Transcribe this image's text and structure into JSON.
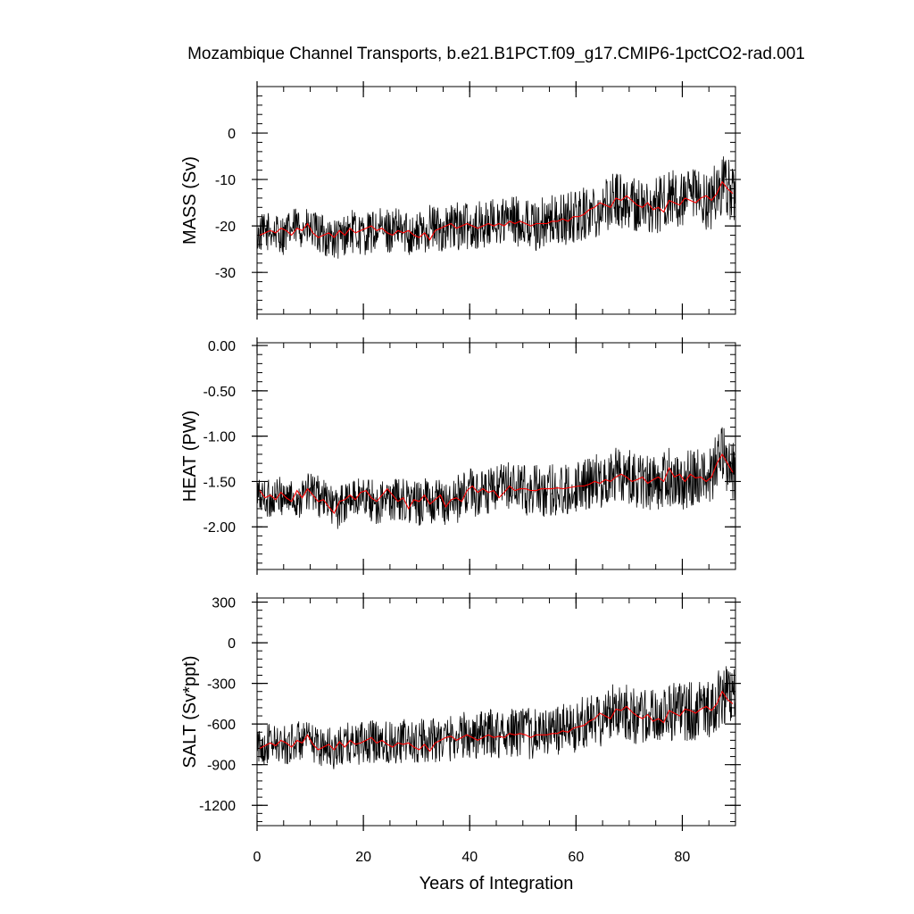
{
  "title": "Mozambique Channel Transports, b.e21.B1PCT.f09_g17.CMIP6-1pctCO2-rad.001",
  "xlabel": "Years of Integration",
  "colors": {
    "monthly": "#000000",
    "annual": "#ff0000",
    "frame": "#000000"
  },
  "chart_data": [
    {
      "type": "line",
      "ylabel": "MASS (Sv)",
      "xlim": [
        0,
        90
      ],
      "ylim": [
        -39,
        10
      ],
      "xticks": [
        0,
        20,
        40,
        60,
        80
      ],
      "yticks": [
        0,
        -10,
        -20,
        -30
      ],
      "ytick_labels": [
        "0",
        "-10",
        "-20",
        "-30"
      ],
      "series": [
        {
          "name": "",
          "style": "monthly",
          "x": [
            0,
            2.5,
            5,
            7.5,
            10,
            12.5,
            15,
            17.5,
            20,
            22.5,
            25,
            27.5,
            30,
            32.5,
            35,
            37.5,
            40,
            42.5,
            45,
            47.5,
            50,
            52.5,
            55,
            57.5,
            60,
            62.5,
            65,
            67.5,
            70,
            72.5,
            75,
            77.5,
            80,
            82.5,
            85,
            87.5,
            90
          ],
          "y": [
            -22,
            -21,
            -22,
            -20,
            -21,
            -22,
            -23,
            -21,
            -22,
            -21,
            -21,
            -21,
            -22,
            -20,
            -21,
            -20,
            -20,
            -20,
            -19,
            -19,
            -19,
            -20,
            -19,
            -19,
            -18,
            -17,
            -16,
            -14,
            -15,
            -16,
            -16,
            -14,
            -15,
            -14,
            -15,
            -11,
            -13
          ]
        },
        {
          "name": "",
          "style": "annual",
          "x": [
            0.5,
            1.5,
            2.5,
            3.5,
            4.5,
            5.5,
            6.5,
            7.5,
            8.5,
            9.5,
            10.5,
            11.5,
            12.5,
            13.5,
            14.5,
            15.5,
            16.5,
            17.5,
            18.5,
            19.5,
            20.5,
            21.5,
            22.5,
            23.5,
            24.5,
            25.5,
            26.5,
            27.5,
            28.5,
            29.5,
            30.5,
            31.5,
            32.5,
            33.5,
            34.5,
            35.5,
            36.5,
            37.5,
            38.5,
            39.5,
            40.5,
            41.5,
            42.5,
            43.5,
            44.5,
            45.5,
            46.5,
            47.5,
            48.5,
            49.5,
            50.5,
            51.5,
            52.5,
            53.5,
            54.5,
            55.5,
            56.5,
            57.5,
            58.5,
            59.5,
            60.5,
            61.5,
            62.5,
            63.5,
            64.5,
            65.5,
            66.5,
            67.5,
            68.5,
            69.5,
            70.5,
            71.5,
            72.5,
            73.5,
            74.5,
            75.5,
            76.5,
            77.5,
            78.5,
            79.5,
            80.5,
            81.5,
            82.5,
            83.5,
            84.5,
            85.5,
            86.5,
            87.5,
            88.5,
            89.5
          ],
          "y": [
            -22,
            -21.5,
            -21,
            -21.5,
            -20.5,
            -21,
            -22,
            -20.5,
            -21,
            -19.5,
            -21.5,
            -22.5,
            -22,
            -21.5,
            -22.5,
            -21,
            -22,
            -20.5,
            -21.5,
            -21,
            -20.5,
            -20,
            -21,
            -20.5,
            -21.5,
            -22,
            -21,
            -21.5,
            -21,
            -22,
            -22.5,
            -21.5,
            -23,
            -21,
            -20.5,
            -20,
            -19.5,
            -20.5,
            -20,
            -19.5,
            -20,
            -20.5,
            -20,
            -19.5,
            -20,
            -19.5,
            -20,
            -19,
            -19.5,
            -19,
            -19.5,
            -20,
            -19.5,
            -19.5,
            -19.5,
            -19,
            -19,
            -18.5,
            -19,
            -18,
            -18,
            -17.5,
            -16.5,
            -16,
            -15,
            -15.5,
            -16,
            -14,
            -14.5,
            -13.5,
            -14.5,
            -15.5,
            -16,
            -15,
            -16.5,
            -16,
            -17,
            -14.5,
            -15,
            -15.5,
            -14,
            -14.5,
            -15,
            -14,
            -13.5,
            -14.5,
            -13,
            -10.5,
            -12,
            -13
          ]
        }
      ]
    },
    {
      "type": "line",
      "ylabel": "HEAT (PW)",
      "xlim": [
        0,
        90
      ],
      "ylim": [
        -2.47,
        0.03
      ],
      "xticks": [
        0,
        20,
        40,
        60,
        80
      ],
      "yticks": [
        0,
        -0.5,
        -1,
        -1.5,
        -2
      ],
      "ytick_labels": [
        "0.00",
        "-0.50",
        "-1.00",
        "-1.50",
        "-2.00"
      ],
      "series": [
        {
          "name": "",
          "style": "monthly",
          "x": [
            0,
            2.5,
            5,
            7.5,
            10,
            12.5,
            15,
            17.5,
            20,
            22.5,
            25,
            27.5,
            30,
            32.5,
            35,
            37.5,
            40,
            42.5,
            45,
            47.5,
            50,
            52.5,
            55,
            57.5,
            60,
            62.5,
            65,
            67.5,
            70,
            72.5,
            75,
            77.5,
            80,
            82.5,
            85,
            87.5,
            90
          ],
          "y": [
            -1.65,
            -1.7,
            -1.65,
            -1.7,
            -1.6,
            -1.7,
            -1.8,
            -1.7,
            -1.65,
            -1.75,
            -1.7,
            -1.7,
            -1.75,
            -1.7,
            -1.75,
            -1.7,
            -1.6,
            -1.65,
            -1.6,
            -1.55,
            -1.6,
            -1.6,
            -1.6,
            -1.6,
            -1.55,
            -1.5,
            -1.5,
            -1.4,
            -1.45,
            -1.5,
            -1.5,
            -1.45,
            -1.5,
            -1.45,
            -1.45,
            -1.2,
            -1.4
          ]
        },
        {
          "name": "",
          "style": "annual",
          "x": [
            0.5,
            1.5,
            2.5,
            3.5,
            4.5,
            5.5,
            6.5,
            7.5,
            8.5,
            9.5,
            10.5,
            11.5,
            12.5,
            13.5,
            14.5,
            15.5,
            16.5,
            17.5,
            18.5,
            19.5,
            20.5,
            21.5,
            22.5,
            23.5,
            24.5,
            25.5,
            26.5,
            27.5,
            28.5,
            29.5,
            30.5,
            31.5,
            32.5,
            33.5,
            34.5,
            35.5,
            36.5,
            37.5,
            38.5,
            39.5,
            40.5,
            41.5,
            42.5,
            43.5,
            44.5,
            45.5,
            46.5,
            47.5,
            48.5,
            49.5,
            50.5,
            51.5,
            52.5,
            53.5,
            54.5,
            55.5,
            56.5,
            57.5,
            58.5,
            59.5,
            60.5,
            61.5,
            62.5,
            63.5,
            64.5,
            65.5,
            66.5,
            67.5,
            68.5,
            69.5,
            70.5,
            71.5,
            72.5,
            73.5,
            74.5,
            75.5,
            76.5,
            77.5,
            78.5,
            79.5,
            80.5,
            81.5,
            82.5,
            83.5,
            84.5,
            85.5,
            86.5,
            87.5,
            88.5,
            89.5
          ],
          "y": [
            -1.6,
            -1.68,
            -1.65,
            -1.7,
            -1.62,
            -1.68,
            -1.72,
            -1.6,
            -1.68,
            -1.58,
            -1.65,
            -1.72,
            -1.7,
            -1.78,
            -1.85,
            -1.72,
            -1.7,
            -1.65,
            -1.7,
            -1.62,
            -1.6,
            -1.68,
            -1.72,
            -1.65,
            -1.58,
            -1.65,
            -1.72,
            -1.68,
            -1.8,
            -1.7,
            -1.72,
            -1.65,
            -1.75,
            -1.7,
            -1.65,
            -1.78,
            -1.7,
            -1.68,
            -1.72,
            -1.6,
            -1.55,
            -1.62,
            -1.58,
            -1.62,
            -1.6,
            -1.68,
            -1.62,
            -1.55,
            -1.6,
            -1.58,
            -1.58,
            -1.6,
            -1.6,
            -1.58,
            -1.58,
            -1.58,
            -1.57,
            -1.58,
            -1.57,
            -1.56,
            -1.55,
            -1.55,
            -1.53,
            -1.5,
            -1.52,
            -1.48,
            -1.5,
            -1.45,
            -1.42,
            -1.45,
            -1.5,
            -1.48,
            -1.45,
            -1.52,
            -1.48,
            -1.45,
            -1.5,
            -1.35,
            -1.45,
            -1.42,
            -1.5,
            -1.42,
            -1.46,
            -1.45,
            -1.5,
            -1.45,
            -1.3,
            -1.2,
            -1.3,
            -1.4
          ]
        }
      ]
    },
    {
      "type": "line",
      "ylabel": "SALT (Sv*ppt)",
      "xlim": [
        0,
        90
      ],
      "ylim": [
        -1350,
        330
      ],
      "xticks": [
        0,
        20,
        40,
        60,
        80
      ],
      "yticks": [
        300,
        0,
        -300,
        -600,
        -900,
        -1200
      ],
      "ytick_labels": [
        "300",
        "0",
        "-300",
        "-600",
        "-900",
        "-1200"
      ],
      "series": [
        {
          "name": "",
          "style": "monthly",
          "x": [
            0,
            2.5,
            5,
            7.5,
            10,
            12.5,
            15,
            17.5,
            20,
            22.5,
            25,
            27.5,
            30,
            32.5,
            35,
            37.5,
            40,
            42.5,
            45,
            47.5,
            50,
            52.5,
            55,
            57.5,
            60,
            62.5,
            65,
            67.5,
            70,
            72.5,
            75,
            77.5,
            80,
            82.5,
            85,
            87.5,
            90
          ],
          "y": [
            -780,
            -740,
            -760,
            -720,
            -740,
            -760,
            -790,
            -740,
            -750,
            -720,
            -730,
            -720,
            -750,
            -700,
            -720,
            -690,
            -680,
            -680,
            -670,
            -660,
            -660,
            -680,
            -650,
            -650,
            -620,
            -580,
            -560,
            -480,
            -520,
            -560,
            -560,
            -500,
            -520,
            -500,
            -510,
            -380,
            -420
          ]
        },
        {
          "name": "",
          "style": "annual",
          "x": [
            0.5,
            1.5,
            2.5,
            3.5,
            4.5,
            5.5,
            6.5,
            7.5,
            8.5,
            9.5,
            10.5,
            11.5,
            12.5,
            13.5,
            14.5,
            15.5,
            16.5,
            17.5,
            18.5,
            19.5,
            20.5,
            21.5,
            22.5,
            23.5,
            24.5,
            25.5,
            26.5,
            27.5,
            28.5,
            29.5,
            30.5,
            31.5,
            32.5,
            33.5,
            34.5,
            35.5,
            36.5,
            37.5,
            38.5,
            39.5,
            40.5,
            41.5,
            42.5,
            43.5,
            44.5,
            45.5,
            46.5,
            47.5,
            48.5,
            49.5,
            50.5,
            51.5,
            52.5,
            53.5,
            54.5,
            55.5,
            56.5,
            57.5,
            58.5,
            59.5,
            60.5,
            61.5,
            62.5,
            63.5,
            64.5,
            65.5,
            66.5,
            67.5,
            68.5,
            69.5,
            70.5,
            71.5,
            72.5,
            73.5,
            74.5,
            75.5,
            76.5,
            77.5,
            78.5,
            79.5,
            80.5,
            81.5,
            82.5,
            83.5,
            84.5,
            85.5,
            86.5,
            87.5,
            88.5,
            89.5
          ],
          "y": [
            -780,
            -760,
            -740,
            -760,
            -720,
            -740,
            -770,
            -720,
            -740,
            -680,
            -750,
            -790,
            -770,
            -750,
            -790,
            -730,
            -770,
            -720,
            -750,
            -740,
            -720,
            -700,
            -740,
            -720,
            -750,
            -770,
            -740,
            -750,
            -740,
            -770,
            -790,
            -750,
            -800,
            -740,
            -720,
            -700,
            -690,
            -720,
            -700,
            -680,
            -700,
            -720,
            -700,
            -680,
            -700,
            -690,
            -700,
            -670,
            -680,
            -670,
            -680,
            -700,
            -680,
            -680,
            -680,
            -670,
            -670,
            -650,
            -660,
            -630,
            -620,
            -610,
            -580,
            -560,
            -520,
            -540,
            -560,
            -490,
            -500,
            -470,
            -510,
            -540,
            -560,
            -530,
            -580,
            -560,
            -590,
            -500,
            -520,
            -540,
            -490,
            -500,
            -520,
            -490,
            -470,
            -500,
            -450,
            -360,
            -420,
            -450
          ]
        }
      ]
    }
  ]
}
